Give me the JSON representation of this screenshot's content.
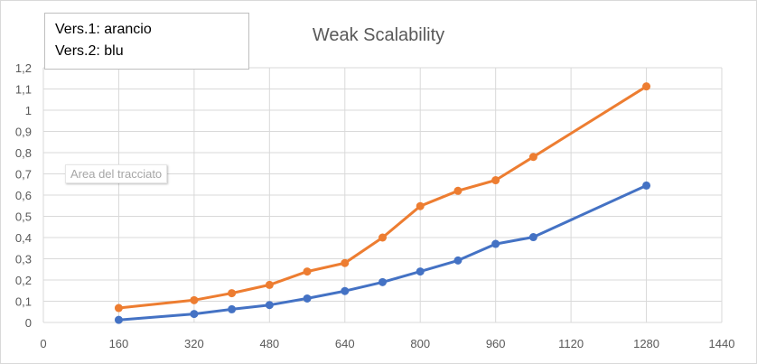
{
  "legend_note": {
    "line1": "Vers.1: arancio",
    "line2": "Vers.2: blu"
  },
  "tooltip": "Area del tracciato",
  "colors": {
    "orange": "#ED7D31",
    "blue": "#4472C4",
    "grid": "#d9d9d9",
    "text": "#595959"
  },
  "chart_data": {
    "type": "line",
    "title": "Weak Scalability",
    "xlabel": "",
    "ylabel": "",
    "xlim": [
      0,
      1440
    ],
    "ylim": [
      0,
      1.2
    ],
    "x_ticks": [
      0,
      160,
      320,
      480,
      640,
      800,
      960,
      1120,
      1280,
      1440
    ],
    "x_tick_labels": [
      "0",
      "160",
      "320",
      "480",
      "640",
      "800",
      "960",
      "1120",
      "1280",
      "1440"
    ],
    "y_ticks": [
      0,
      0.1,
      0.2,
      0.3,
      0.4,
      0.5,
      0.6,
      0.7,
      0.8,
      0.9,
      1,
      1.1,
      1.2
    ],
    "y_tick_labels": [
      "0",
      "0,1",
      "0,2",
      "0,3",
      "0,4",
      "0,5",
      "0,6",
      "0,7",
      "0,8",
      "0,9",
      "1",
      "1,1",
      "1,2"
    ],
    "grid": true,
    "series": [
      {
        "color": "#ED7D31",
        "x": [
          160,
          320,
          400,
          480,
          560,
          640,
          720,
          800,
          880,
          960,
          1040,
          1280
        ],
        "y": [
          0.068,
          0.105,
          0.138,
          0.177,
          0.24,
          0.28,
          0.4,
          0.548,
          0.62,
          0.67,
          0.78,
          1.112
        ]
      },
      {
        "color": "#4472C4",
        "x": [
          160,
          320,
          400,
          480,
          560,
          640,
          720,
          800,
          880,
          960,
          1040,
          1280
        ],
        "y": [
          0.012,
          0.04,
          0.062,
          0.082,
          0.113,
          0.148,
          0.19,
          0.24,
          0.292,
          0.37,
          0.402,
          0.645
        ]
      }
    ]
  }
}
